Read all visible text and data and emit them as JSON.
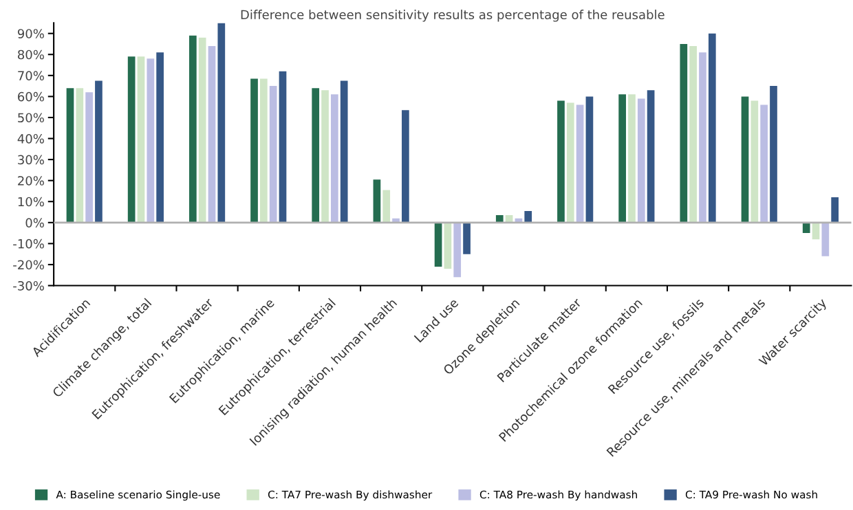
{
  "chart_data": {
    "type": "bar",
    "title": "Difference between sensitivity results as percentage of the reusable",
    "categories": [
      "Acidification",
      "Climate change, total",
      "Eutrophication, freshwater",
      "Eutrophication, marine",
      "Eutrophication, terrestrial",
      "Ionising radiation, human health",
      "Land use",
      "Ozone depletion",
      "Particulate matter",
      "Photochemical ozone formation",
      "Resource use, fossils",
      "Resource use, minerals and metals",
      "Water scarcity"
    ],
    "series": [
      {
        "name": "A: Baseline scenario Single-use",
        "color": "#256d50",
        "values": [
          64,
          79,
          89,
          68.5,
          64,
          20.5,
          -21,
          3.5,
          58,
          61,
          85,
          60,
          -5
        ]
      },
      {
        "name": "C: TA7 Pre-wash By dishwasher",
        "color": "#cfe5c6",
        "values": [
          64,
          79,
          88,
          68.5,
          63,
          15.5,
          -22,
          3.5,
          57,
          61,
          84,
          58,
          -8
        ]
      },
      {
        "name": "C: TA8 Pre-wash By handwash",
        "color": "#bbbde3",
        "values": [
          62,
          78,
          84,
          65,
          61,
          2,
          -26,
          2,
          56,
          59,
          81,
          56,
          -16
        ]
      },
      {
        "name": "C: TA9 Pre-wash No wash",
        "color": "#365887",
        "values": [
          67.5,
          81,
          95,
          72,
          67.5,
          53.5,
          -15,
          5.5,
          60,
          63,
          90,
          65,
          12
        ]
      }
    ],
    "ylim": [
      -30,
      95
    ],
    "yticks": [
      {
        "value": -30,
        "label": "-30%"
      },
      {
        "value": -20,
        "label": "-20%"
      },
      {
        "value": -10,
        "label": "-10%"
      },
      {
        "value": 0,
        "label": "0%"
      },
      {
        "value": 10,
        "label": "10%"
      },
      {
        "value": 20,
        "label": "20%"
      },
      {
        "value": 30,
        "label": "30%"
      },
      {
        "value": 40,
        "label": "40%"
      },
      {
        "value": 50,
        "label": "50%"
      },
      {
        "value": 60,
        "label": "60%"
      },
      {
        "value": 70,
        "label": "70%"
      },
      {
        "value": 80,
        "label": "80%"
      },
      {
        "value": 90,
        "label": "90%"
      }
    ],
    "ref_lines": [
      {
        "axis": "y",
        "value": 0,
        "color": "#b0b0b0"
      }
    ],
    "grid": false,
    "legend": "bottom"
  }
}
